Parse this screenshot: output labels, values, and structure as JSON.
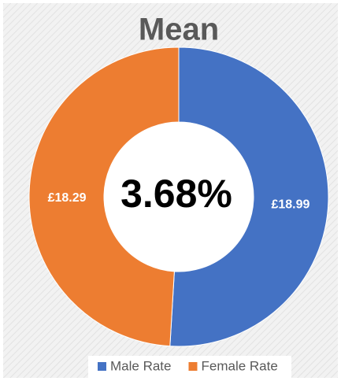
{
  "chart_data": {
    "type": "doughnut",
    "title": "Mean",
    "categories": [
      "Male Rate",
      "Female Rate"
    ],
    "values": [
      18.99,
      18.29
    ],
    "value_labels": [
      "£18.99",
      "£18.29"
    ],
    "colors": [
      "#4472c4",
      "#ed7d31"
    ],
    "center_label": "3.68%",
    "legend": "bottom"
  }
}
